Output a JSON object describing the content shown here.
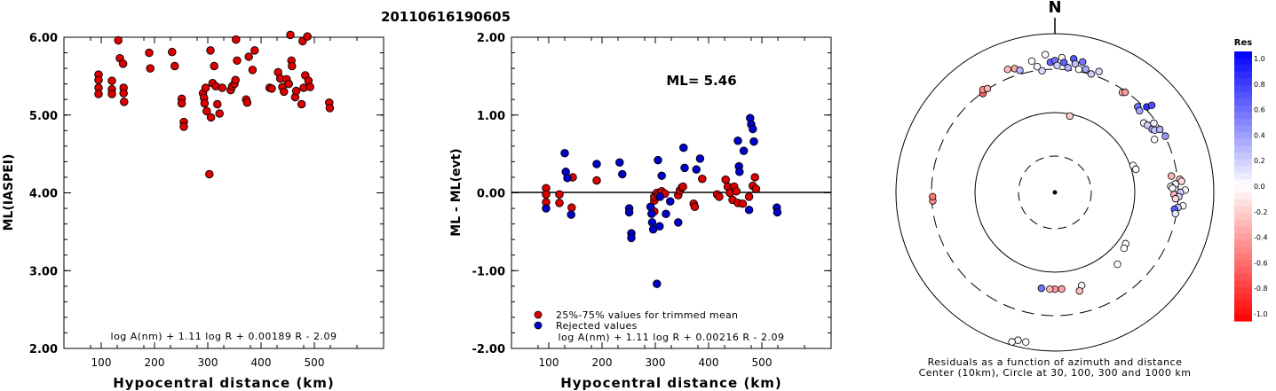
{
  "title": "20110616190605",
  "chart_data": [
    {
      "type": "scatter",
      "xlabel": "Hypocentral distance (km)",
      "ylabel": "ML(IASPEI)",
      "xlim": [
        30,
        630
      ],
      "ylim": [
        2,
        6
      ],
      "xticks": [
        "100",
        "200",
        "300",
        "400",
        "500"
      ],
      "yticks": [
        "2.00",
        "3.00",
        "4.00",
        "5.00",
        "6.00"
      ],
      "formula": "log A(nm) + 1.11 log R + 0.00189 R - 2.09",
      "grid": false,
      "series": [
        {
          "color": "#dd0000",
          "points": [
            [
              95,
              5.52
            ],
            [
              95,
              5.45
            ],
            [
              95,
              5.35
            ],
            [
              95,
              5.27
            ],
            [
              120,
              5.44
            ],
            [
              120,
              5.33
            ],
            [
              120,
              5.27
            ],
            [
              132,
              5.96
            ],
            [
              135,
              5.73
            ],
            [
              141,
              5.66
            ],
            [
              142,
              5.35
            ],
            [
              142,
              5.28
            ],
            [
              143,
              5.17
            ],
            [
              190,
              5.8
            ],
            [
              192,
              5.6
            ],
            [
              233,
              5.81
            ],
            [
              238,
              5.63
            ],
            [
              251,
              5.21
            ],
            [
              251,
              5.15
            ],
            [
              255,
              4.91
            ],
            [
              255,
              4.85
            ],
            [
              291,
              5.28
            ],
            [
              293,
              5.22
            ],
            [
              294,
              5.15
            ],
            [
              296,
              5.35
            ],
            [
              298,
              5.05
            ],
            [
              303,
              4.24
            ],
            [
              305,
              5.83
            ],
            [
              306,
              4.97
            ],
            [
              309,
              5.41
            ],
            [
              312,
              5.63
            ],
            [
              315,
              5.37
            ],
            [
              318,
              5.14
            ],
            [
              322,
              5.02
            ],
            [
              327,
              5.35
            ],
            [
              343,
              5.32
            ],
            [
              346,
              5.37
            ],
            [
              350,
              5.4
            ],
            [
              352,
              5.45
            ],
            [
              353,
              5.97
            ],
            [
              355,
              5.7
            ],
            [
              372,
              5.2
            ],
            [
              374,
              5.16
            ],
            [
              377,
              5.75
            ],
            [
              384,
              5.58
            ],
            [
              388,
              5.83
            ],
            [
              416,
              5.35
            ],
            [
              420,
              5.34
            ],
            [
              432,
              5.55
            ],
            [
              436,
              5.47
            ],
            [
              440,
              5.36
            ],
            [
              443,
              5.3
            ],
            [
              448,
              5.46
            ],
            [
              452,
              5.4
            ],
            [
              455,
              6.03
            ],
            [
              457,
              5.7
            ],
            [
              458,
              5.63
            ],
            [
              464,
              5.23
            ],
            [
              466,
              5.31
            ],
            [
              476,
              5.14
            ],
            [
              478,
              5.95
            ],
            [
              480,
              5.35
            ],
            [
              483,
              5.51
            ],
            [
              487,
              6.01
            ],
            [
              489,
              5.44
            ],
            [
              492,
              5.36
            ],
            [
              528,
              5.16
            ],
            [
              529,
              5.09
            ]
          ]
        }
      ]
    },
    {
      "type": "scatter",
      "xlabel": "Hypocentral distance (km)",
      "ylabel": "ML - ML(evt)",
      "xlim": [
        30,
        630
      ],
      "ylim": [
        -2,
        2
      ],
      "xticks": [
        "100",
        "200",
        "300",
        "400",
        "500"
      ],
      "yticks": [
        "-2.00",
        "-1.00",
        "0.00",
        "1.00",
        "2.00"
      ],
      "ml_label": "ML= 5.46",
      "formula": "log A(nm) + 1.11 log R + 0.00216 R - 2.09",
      "reference_line": 0,
      "grid": false,
      "series": [
        {
          "name": "25%-75% values for trimmed mean",
          "color": "#dd0000",
          "points": [
            [
              95,
              0.06
            ],
            [
              95,
              -0.02
            ],
            [
              95,
              -0.12
            ],
            [
              120,
              -0.02
            ],
            [
              120,
              -0.13
            ],
            [
              143,
              -0.19
            ],
            [
              145,
              0.2
            ],
            [
              190,
              0.16
            ],
            [
              298,
              -0.24
            ],
            [
              298,
              -0.1
            ],
            [
              298,
              -0.05
            ],
            [
              303,
              0.0
            ],
            [
              306,
              -0.03
            ],
            [
              312,
              0.02
            ],
            [
              318,
              -0.01
            ],
            [
              343,
              -0.03
            ],
            [
              346,
              0.03
            ],
            [
              350,
              0.07
            ],
            [
              352,
              0.08
            ],
            [
              372,
              -0.14
            ],
            [
              374,
              -0.18
            ],
            [
              388,
              0.18
            ],
            [
              416,
              -0.02
            ],
            [
              420,
              -0.05
            ],
            [
              432,
              0.17
            ],
            [
              436,
              0.08
            ],
            [
              440,
              0.0
            ],
            [
              445,
              -0.09
            ],
            [
              448,
              0.08
            ],
            [
              452,
              0.02
            ],
            [
              455,
              -0.13
            ],
            [
              464,
              -0.14
            ],
            [
              476,
              -0.05
            ],
            [
              483,
              0.09
            ],
            [
              487,
              0.2
            ],
            [
              489,
              0.05
            ]
          ]
        },
        {
          "name": "Rejected values",
          "color": "#0000cc",
          "points": [
            [
              95,
              -0.2
            ],
            [
              130,
              0.51
            ],
            [
              132,
              0.27
            ],
            [
              135,
              0.19
            ],
            [
              142,
              -0.28
            ],
            [
              190,
              0.37
            ],
            [
              233,
              0.39
            ],
            [
              238,
              0.24
            ],
            [
              251,
              -0.2
            ],
            [
              251,
              -0.25
            ],
            [
              255,
              -0.52
            ],
            [
              255,
              -0.58
            ],
            [
              291,
              -0.18
            ],
            [
              293,
              -0.27
            ],
            [
              294,
              -0.38
            ],
            [
              296,
              -0.47
            ],
            [
              303,
              -1.17
            ],
            [
              305,
              0.42
            ],
            [
              308,
              -0.43
            ],
            [
              309,
              -0.05
            ],
            [
              312,
              0.22
            ],
            [
              320,
              -0.27
            ],
            [
              328,
              -0.11
            ],
            [
              343,
              -0.38
            ],
            [
              353,
              0.58
            ],
            [
              355,
              0.32
            ],
            [
              377,
              0.3
            ],
            [
              384,
              0.44
            ],
            [
              455,
              0.67
            ],
            [
              457,
              0.34
            ],
            [
              458,
              0.27
            ],
            [
              466,
              0.54
            ],
            [
              476,
              -0.22
            ],
            [
              478,
              0.96
            ],
            [
              480,
              0.88
            ],
            [
              483,
              0.82
            ],
            [
              485,
              0.66
            ],
            [
              528,
              -0.19
            ],
            [
              529,
              -0.25
            ]
          ]
        }
      ]
    },
    {
      "type": "scatter",
      "subtype": "polar",
      "north_label": "N",
      "caption": "Residuals as a function of azimuth and distance",
      "caption2": "Center (10km), Circle at 30, 100, 300 and 1000 km",
      "colorbar": {
        "title": "Res",
        "ticks": [
          "1.0",
          "0.8",
          "0.6",
          "0.4",
          "0.2",
          "0.0",
          "-0.2",
          "-0.4",
          "-0.6",
          "-0.8",
          "-1.0"
        ],
        "range": [
          -1,
          1
        ]
      },
      "grid": false,
      "note": "points are [azimuth in degrees clockwise from north, ring position (0 = center, 1 = outer circle), residual]",
      "points": [
        [
          -36,
          0.77,
          -0.6
        ],
        [
          -35,
          0.79,
          -0.45
        ],
        [
          -33,
          0.78,
          -0.3
        ],
        [
          -21,
          0.83,
          -0.28
        ],
        [
          -18,
          0.82,
          -0.35
        ],
        [
          -16,
          0.8,
          0.3
        ],
        [
          -10,
          0.84,
          -0.02
        ],
        [
          -8,
          0.8,
          0.05
        ],
        [
          -6,
          0.77,
          0.15
        ],
        [
          -4,
          0.87,
          -0.02
        ],
        [
          -2,
          0.82,
          0.6
        ],
        [
          0,
          0.83,
          0.55
        ],
        [
          1,
          0.8,
          0.2
        ],
        [
          3,
          0.85,
          -0.05
        ],
        [
          4,
          0.82,
          0.62
        ],
        [
          6,
          0.79,
          0.3
        ],
        [
          8,
          0.85,
          0.65
        ],
        [
          9,
          0.82,
          0.25
        ],
        [
          11,
          0.79,
          0.0
        ],
        [
          12,
          0.84,
          0.55
        ],
        [
          14,
          0.8,
          0.35
        ],
        [
          17,
          0.78,
          0.2
        ],
        [
          20,
          0.81,
          0.15
        ],
        [
          11,
          0.49,
          -0.2
        ],
        [
          34,
          0.76,
          -0.25
        ],
        [
          35,
          0.77,
          -0.4
        ],
        [
          44,
          0.75,
          0.55
        ],
        [
          46,
          0.74,
          0.35
        ],
        [
          47,
          0.79,
          0.8
        ],
        [
          48,
          0.82,
          0.7
        ],
        [
          52,
          0.71,
          0.02
        ],
        [
          54,
          0.72,
          0.2
        ],
        [
          55,
          0.76,
          0.05
        ],
        [
          57,
          0.73,
          0.35
        ],
        [
          58,
          0.74,
          0.25
        ],
        [
          59,
          0.77,
          0.3
        ],
        [
          62,
          0.71,
          0.0
        ],
        [
          63,
          0.78,
          0.4
        ],
        [
          71,
          0.52,
          0.0
        ],
        [
          74,
          0.53,
          0.0
        ],
        [
          82,
          0.74,
          -0.3
        ],
        [
          84,
          0.79,
          -0.2
        ],
        [
          85,
          0.8,
          -0.15
        ],
        [
          86,
          0.76,
          0.05
        ],
        [
          87,
          0.73,
          -0.1
        ],
        [
          88,
          0.74,
          0.05
        ],
        [
          89,
          0.82,
          -0.05
        ],
        [
          90,
          0.79,
          0.2
        ],
        [
          91,
          0.75,
          -0.3
        ],
        [
          92,
          0.78,
          0.15
        ],
        [
          93,
          0.76,
          -0.15
        ],
        [
          96,
          0.81,
          0.0
        ],
        [
          97,
          0.78,
          0.2
        ],
        [
          98,
          0.76,
          0.65
        ],
        [
          100,
          0.77,
          0.1
        ],
        [
          126,
          0.55,
          0.0
        ],
        [
          129,
          0.56,
          0.0
        ],
        [
          139,
          0.6,
          0.0
        ],
        [
          164,
          0.61,
          -0.05
        ],
        [
          166,
          0.64,
          -0.25
        ],
        [
          176,
          0.61,
          -0.35
        ],
        [
          180,
          0.61,
          -0.4
        ],
        [
          183,
          0.61,
          -0.3
        ],
        [
          188,
          0.61,
          0.55
        ],
        [
          191,
          0.96,
          0.0
        ],
        [
          194,
          0.96,
          -0.02
        ],
        [
          196,
          0.98,
          0.0
        ],
        [
          266,
          0.77,
          -0.45
        ],
        [
          268,
          0.77,
          -0.55
        ]
      ]
    }
  ]
}
